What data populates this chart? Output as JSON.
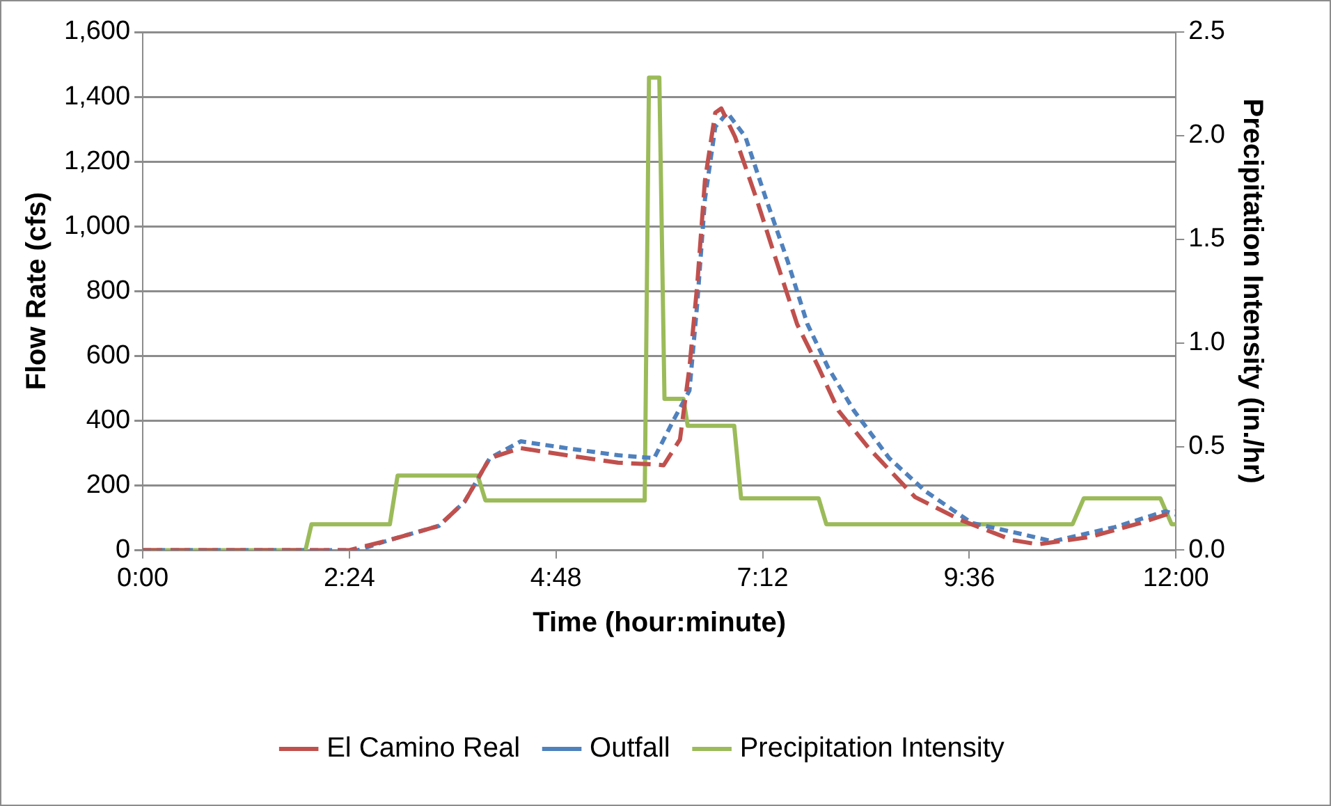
{
  "chart_data": {
    "type": "line",
    "xlabel": "Time (hour:minute)",
    "ylabel": "Flow Rate (cfs)",
    "y2label": "Precipitation Intensity (in./hr)",
    "xlim": [
      0,
      12
    ],
    "xticks": [
      {
        "value": 0,
        "label": "0:00"
      },
      {
        "value": 2.4,
        "label": "2:24"
      },
      {
        "value": 4.8,
        "label": "4:48"
      },
      {
        "value": 7.2,
        "label": "7:12"
      },
      {
        "value": 9.6,
        "label": "9:36"
      },
      {
        "value": 12,
        "label": "12:00"
      }
    ],
    "ylim": [
      0,
      1600
    ],
    "yticks": [
      {
        "value": 0,
        "label": "0"
      },
      {
        "value": 200,
        "label": "200"
      },
      {
        "value": 400,
        "label": "400"
      },
      {
        "value": 600,
        "label": "600"
      },
      {
        "value": 800,
        "label": "800"
      },
      {
        "value": 1000,
        "label": "1,000"
      },
      {
        "value": 1200,
        "label": "1,200"
      },
      {
        "value": 1400,
        "label": "1,400"
      },
      {
        "value": 1600,
        "label": "1,600"
      }
    ],
    "y2lim": [
      0,
      2.5
    ],
    "y2ticks": [
      {
        "value": 0,
        "label": "0.0"
      },
      {
        "value": 0.5,
        "label": "0.5"
      },
      {
        "value": 1,
        "label": "1.0"
      },
      {
        "value": 1.5,
        "label": "1.5"
      },
      {
        "value": 2,
        "label": "2.0"
      },
      {
        "value": 2.5,
        "label": "2.5"
      }
    ],
    "grid": "y",
    "legend": "bottom",
    "marker": "none",
    "series": [
      {
        "name": "El Camino Real",
        "color": "#c0504d",
        "line_style": "dashed",
        "x": [
          0,
          1.5,
          2.4,
          2.85,
          3.44,
          3.74,
          4.03,
          4.39,
          4.92,
          5.52,
          5.94,
          6.05,
          6.24,
          6.35,
          6.44,
          6.53,
          6.65,
          6.72,
          6.88,
          7.13,
          7.36,
          7.6,
          7.85,
          8.08,
          8.43,
          8.97,
          9.5,
          10.1,
          10.4,
          10.99,
          11.59,
          12
        ],
        "values": [
          0,
          0,
          0,
          30,
          75,
          150,
          284,
          315,
          293,
          270,
          265,
          262,
          342,
          564,
          818,
          1142,
          1351,
          1364,
          1276,
          1084,
          893,
          698,
          564,
          431,
          316,
          164,
          93,
          31,
          18,
          40,
          84,
          120
        ]
      },
      {
        "name": "Outfall",
        "color": "#4f81bd",
        "line_style": "dotted",
        "x": [
          0,
          1.5,
          2.5,
          2.85,
          3.44,
          3.74,
          4.03,
          4.39,
          4.92,
          5.52,
          5.94,
          6.17,
          6.35,
          6.44,
          6.53,
          6.65,
          6.79,
          7.0,
          7.24,
          7.49,
          7.72,
          7.96,
          8.26,
          8.67,
          9.09,
          9.63,
          10.22,
          10.57,
          11.29,
          11.88,
          12
        ],
        "values": [
          0,
          0,
          0,
          30,
          75,
          150,
          284,
          336,
          315,
          293,
          284,
          404,
          493,
          760,
          1084,
          1307,
          1351,
          1276,
          1084,
          893,
          698,
          564,
          431,
          284,
          182,
          84,
          49,
          27,
          71,
          120,
          110
        ]
      },
      {
        "name": "Precipitation Intensity",
        "color": "#9bbb59",
        "line_style": "solid",
        "axis": "y2",
        "x": [
          0,
          1.89,
          1.96,
          2.87,
          2.96,
          3.89,
          3.98,
          5.83,
          5.88,
          6.0,
          6.06,
          6.28,
          6.33,
          6.87,
          6.95,
          7.85,
          7.94,
          10.8,
          10.93,
          11.82,
          11.95,
          12
        ],
        "values": [
          0,
          0,
          0.125,
          0.125,
          0.36,
          0.36,
          0.24,
          0.24,
          2.28,
          2.28,
          0.73,
          0.73,
          0.6,
          0.6,
          0.25,
          0.25,
          0.125,
          0.125,
          0.25,
          0.25,
          0.125,
          0.125
        ]
      }
    ]
  }
}
